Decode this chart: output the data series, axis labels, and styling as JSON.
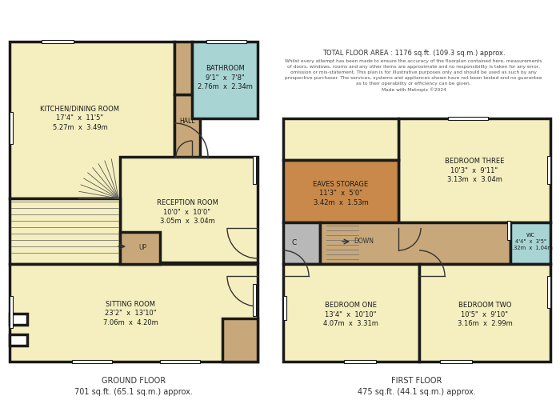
{
  "bg_color": "#ffffff",
  "wall_color": "#1a1a1a",
  "light": "#f5efbf",
  "blue": "#a8d4d4",
  "orange": "#c8894a",
  "tan": "#c8a87a",
  "gray": "#b8b8b8",
  "lw": 2.5,
  "ground_floor_label": "GROUND FLOOR\n701 sq.ft. (65.1 sq.m.) approx.",
  "first_floor_label": "FIRST FLOOR\n475 sq.ft. (44.1 sq.m.) approx.",
  "total_area_text": "TOTAL FLOOR AREA : 1176 sq.ft. (109.3 sq.m.) approx.",
  "disclaimer": "Whilst every attempt has been made to ensure the accuracy of the floorplan contained here, measurements\nof doors, windows, rooms and any other items are approximate and no responsibility is taken for any error,\nomission or mis-statement. This plan is for illustrative purposes only and should be used as such by any\nprospective purchaser. The services, systems and appliances shown have not been tested and no guarantee\nas to their operability or efficiency can be given.\nMade with Metropix ©2024"
}
